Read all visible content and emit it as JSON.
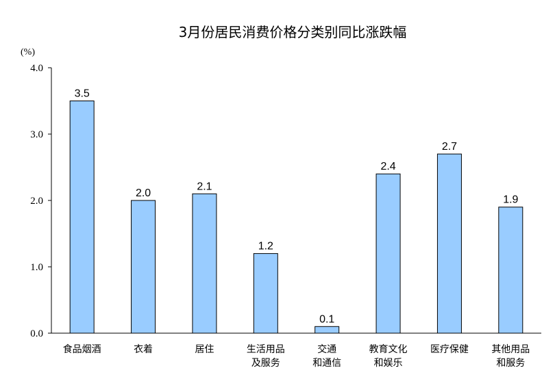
{
  "chart_data": {
    "type": "bar",
    "title": "3月份居民消费价格分类别同比涨跌幅",
    "unit_label": "(%)",
    "categories": [
      [
        "食品烟酒"
      ],
      [
        "衣着"
      ],
      [
        "居住"
      ],
      [
        "生活用品",
        "及服务"
      ],
      [
        "交通",
        "和通信"
      ],
      [
        "教育文化",
        "和娱乐"
      ],
      [
        "医疗保健"
      ],
      [
        "其他用品",
        "和服务"
      ]
    ],
    "values": [
      3.5,
      2.0,
      2.1,
      1.2,
      0.1,
      2.4,
      2.7,
      1.9
    ],
    "value_labels": [
      "3.5",
      "2.0",
      "2.1",
      "1.2",
      "0.1",
      "2.4",
      "2.7",
      "1.9"
    ],
    "ylim": [
      0,
      4.0
    ],
    "yticks": [
      "0.0",
      "1.0",
      "2.0",
      "3.0",
      "4.0"
    ],
    "grid": false,
    "legend": "none",
    "bar_color": "#99CCFF"
  }
}
